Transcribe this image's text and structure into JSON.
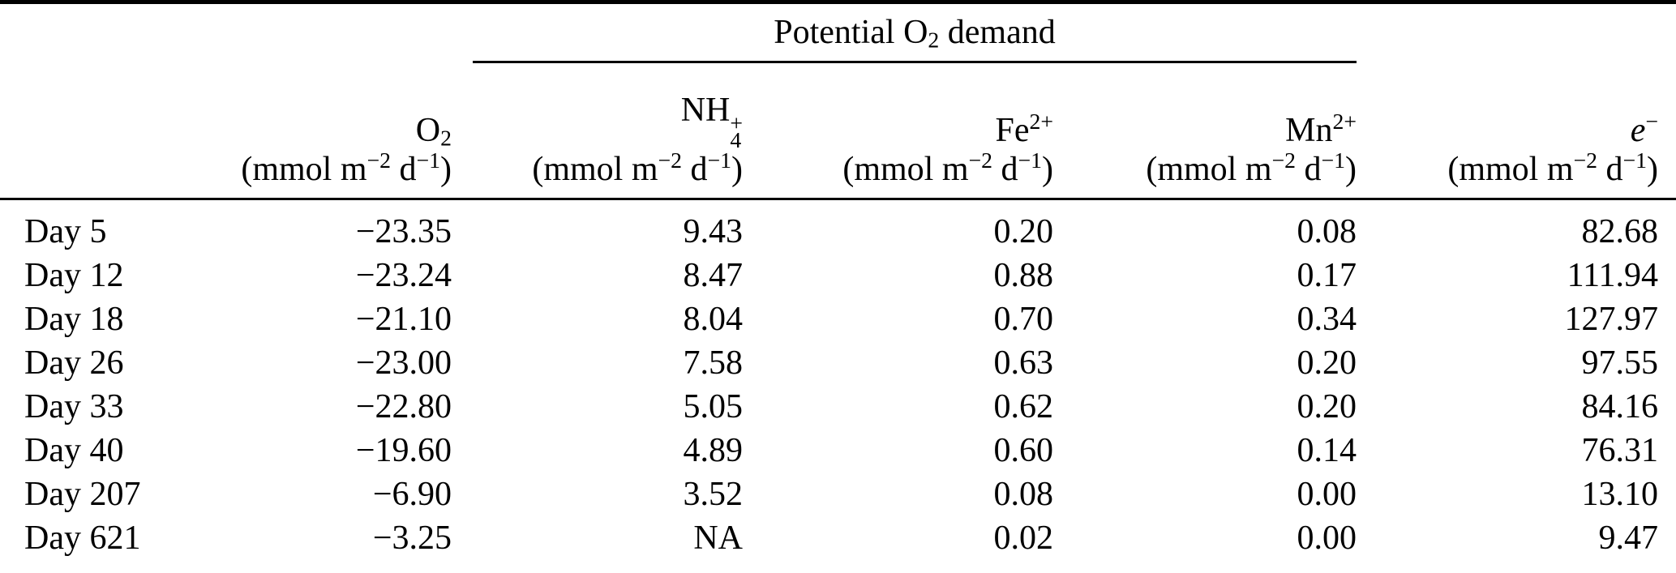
{
  "table": {
    "span_header": {
      "pre": "Potential O",
      "sub": "2",
      "post": " demand"
    },
    "columns": [
      {
        "label": ""
      },
      {
        "base": "O",
        "sub": "2",
        "sup": "",
        "unit": [
          "(mmol m",
          "−2",
          " d",
          "−1",
          ")"
        ]
      },
      {
        "base": "NH",
        "sub": "4",
        "sup": "+",
        "unit": [
          "(mmol m",
          "−2",
          " d",
          "−1",
          ")"
        ]
      },
      {
        "base": "Fe",
        "sub": "",
        "sup": "2+",
        "unit": [
          "(mmol m",
          "−2",
          " d",
          "−1",
          ")"
        ]
      },
      {
        "base": "Mn",
        "sub": "",
        "sup": "2+",
        "unit": [
          "(mmol m",
          "−2",
          " d",
          "−1",
          ")"
        ]
      },
      {
        "base": "e",
        "sub": "",
        "sup": "−",
        "unit": [
          "(mmol m",
          "−2",
          " d",
          "−1",
          ")"
        ]
      }
    ],
    "rows": [
      {
        "label": "Day 5",
        "values": [
          "−23.35",
          "9.43",
          "0.20",
          "0.08",
          "82.68"
        ]
      },
      {
        "label": "Day 12",
        "values": [
          "−23.24",
          "8.47",
          "0.88",
          "0.17",
          "111.94"
        ]
      },
      {
        "label": "Day 18",
        "values": [
          "−21.10",
          "8.04",
          "0.70",
          "0.34",
          "127.97"
        ]
      },
      {
        "label": "Day 26",
        "values": [
          "−23.00",
          "7.58",
          "0.63",
          "0.20",
          "97.55"
        ]
      },
      {
        "label": "Day 33",
        "values": [
          "−22.80",
          "5.05",
          "0.62",
          "0.20",
          "84.16"
        ]
      },
      {
        "label": "Day 40",
        "values": [
          "−19.60",
          "4.89",
          "0.60",
          "0.14",
          "76.31"
        ]
      },
      {
        "label": "Day 207",
        "values": [
          "−6.90",
          "3.52",
          "0.08",
          "0.00",
          "13.10"
        ]
      },
      {
        "label": "Day 621",
        "values": [
          "−3.25",
          "NA",
          "0.02",
          "0.00",
          "9.47"
        ]
      }
    ]
  },
  "chart_data": {
    "type": "table",
    "title": "Potential O2 demand",
    "columns": [
      "",
      "O2 (mmol m-2 d-1)",
      "NH4+ (mmol m-2 d-1)",
      "Fe2+ (mmol m-2 d-1)",
      "Mn2+ (mmol m-2 d-1)",
      "e- (mmol m-2 d-1)"
    ],
    "spanner": {
      "label": "Potential O2 demand",
      "covers": [
        "NH4+",
        "Fe2+",
        "Mn2+"
      ]
    },
    "rows": [
      [
        "Day 5",
        -23.35,
        9.43,
        0.2,
        0.08,
        82.68
      ],
      [
        "Day 12",
        -23.24,
        8.47,
        0.88,
        0.17,
        111.94
      ],
      [
        "Day 18",
        -21.1,
        8.04,
        0.7,
        0.34,
        127.97
      ],
      [
        "Day 26",
        -23.0,
        7.58,
        0.63,
        0.2,
        97.55
      ],
      [
        "Day 33",
        -22.8,
        5.05,
        0.62,
        0.2,
        84.16
      ],
      [
        "Day 40",
        -19.6,
        4.89,
        0.6,
        0.14,
        76.31
      ],
      [
        "Day 207",
        -6.9,
        3.52,
        0.08,
        0.0,
        13.1
      ],
      [
        "Day 621",
        -3.25,
        "NA",
        0.02,
        0.0,
        9.47
      ]
    ]
  }
}
